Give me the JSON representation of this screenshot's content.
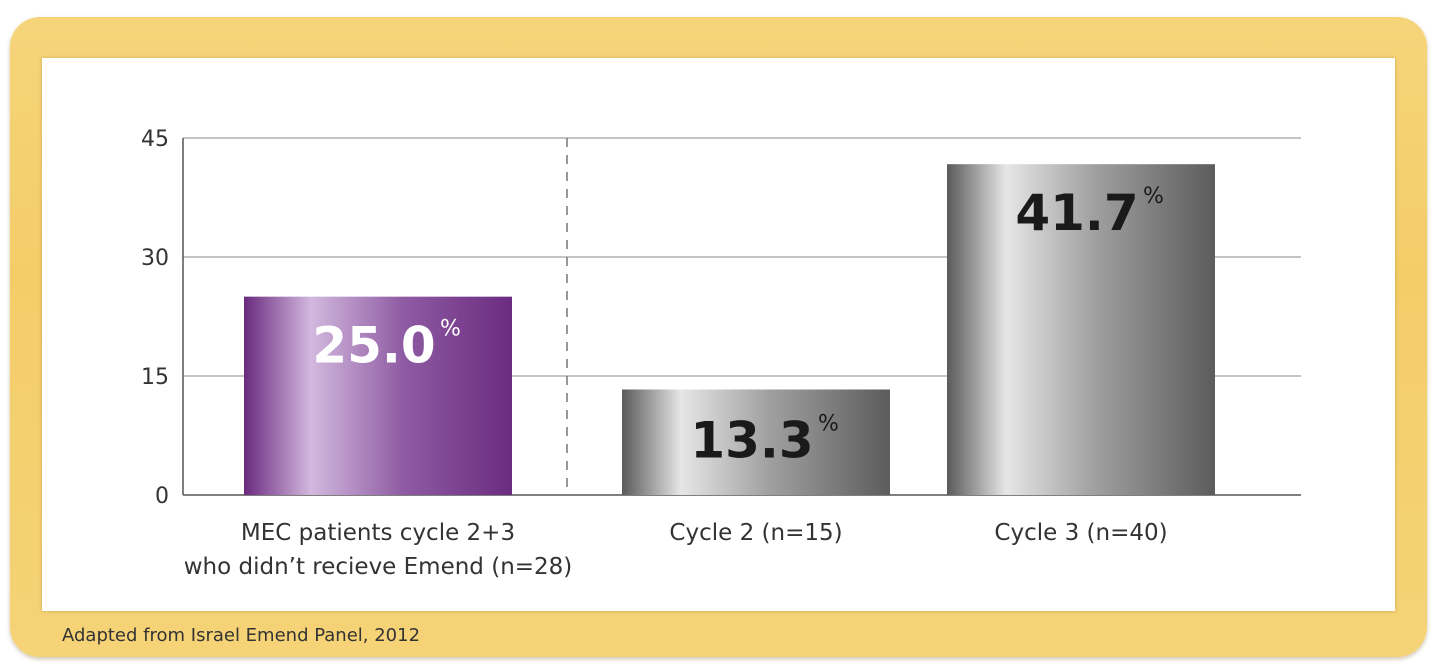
{
  "chart_data": {
    "type": "bar",
    "categories": [
      [
        "MEC patients cycle 2+3",
        "who didn’t recieve Emend (n=28)"
      ],
      [
        "Cycle 2 (n=15)"
      ],
      [
        "Cycle 3 (n=40)"
      ]
    ],
    "values": [
      25.0,
      13.3,
      41.7
    ],
    "value_labels": [
      "25.0",
      "13.3",
      "41.7"
    ],
    "value_suffix": "%",
    "bar_colors": [
      "#7a3a8c",
      "#7a7a7a",
      "#7a7a7a"
    ],
    "value_label_colors": [
      "#ffffff",
      "#1a1a1a",
      "#1a1a1a"
    ],
    "ylim": [
      0,
      45
    ],
    "yticks": [
      0,
      15,
      30,
      45
    ],
    "grid": true,
    "separator_after_category": 0,
    "title": "",
    "xlabel": "",
    "ylabel": ""
  },
  "source_note": "Adapted from Israel Emend Panel, 2012"
}
